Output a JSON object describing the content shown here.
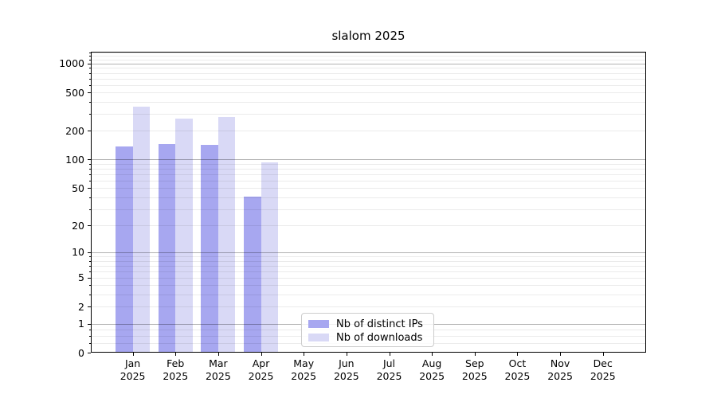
{
  "title": "slalom 2025",
  "chart_data": {
    "type": "bar",
    "title": "slalom 2025",
    "categories": [
      "Jan 2025",
      "Feb 2025",
      "Mar 2025",
      "Apr 2025",
      "May 2025",
      "Jun 2025",
      "Jul 2025",
      "Aug 2025",
      "Sep 2025",
      "Oct 2025",
      "Nov 2025",
      "Dec 2025"
    ],
    "series": [
      {
        "name": "Nb of distinct IPs",
        "color": "#a7a7f0",
        "values": [
          136,
          145,
          142,
          41,
          0,
          0,
          0,
          0,
          0,
          0,
          0,
          0
        ]
      },
      {
        "name": "Nb of downloads",
        "color": "#d9d9f6",
        "values": [
          355,
          266,
          278,
          93,
          0,
          0,
          0,
          0,
          0,
          0,
          0,
          0
        ]
      }
    ],
    "xlabel": "",
    "ylabel": "",
    "y_scale": "log10(1+y)",
    "y_ticks": [
      0,
      1,
      2,
      5,
      10,
      20,
      50,
      100,
      200,
      500,
      1000
    ],
    "y_minor_ticks": [
      0.25,
      0.5,
      0.75,
      2,
      3,
      4,
      5,
      6,
      7,
      8,
      9,
      20,
      30,
      40,
      50,
      60,
      70,
      80,
      90,
      200,
      300,
      400,
      500,
      600,
      700,
      800,
      900,
      1100,
      1200,
      1300
    ],
    "y_major_gridlines": [
      1,
      10,
      100,
      1000
    ],
    "ylim": [
      0,
      1350
    ],
    "grid": true,
    "legend_position": "lower center"
  },
  "colors": {
    "background": "#ffffff",
    "bar_distinct_ips": "#a7a7f0",
    "bar_downloads": "#d9d9f6",
    "major_grid": "#b3b3b3",
    "minor_grid": "#ebebeb",
    "spine": "#000000",
    "text": "#000000",
    "legend_border": "#cccccc"
  },
  "legend": {
    "items": [
      {
        "label": "Nb of distinct IPs"
      },
      {
        "label": "Nb of downloads"
      }
    ]
  }
}
